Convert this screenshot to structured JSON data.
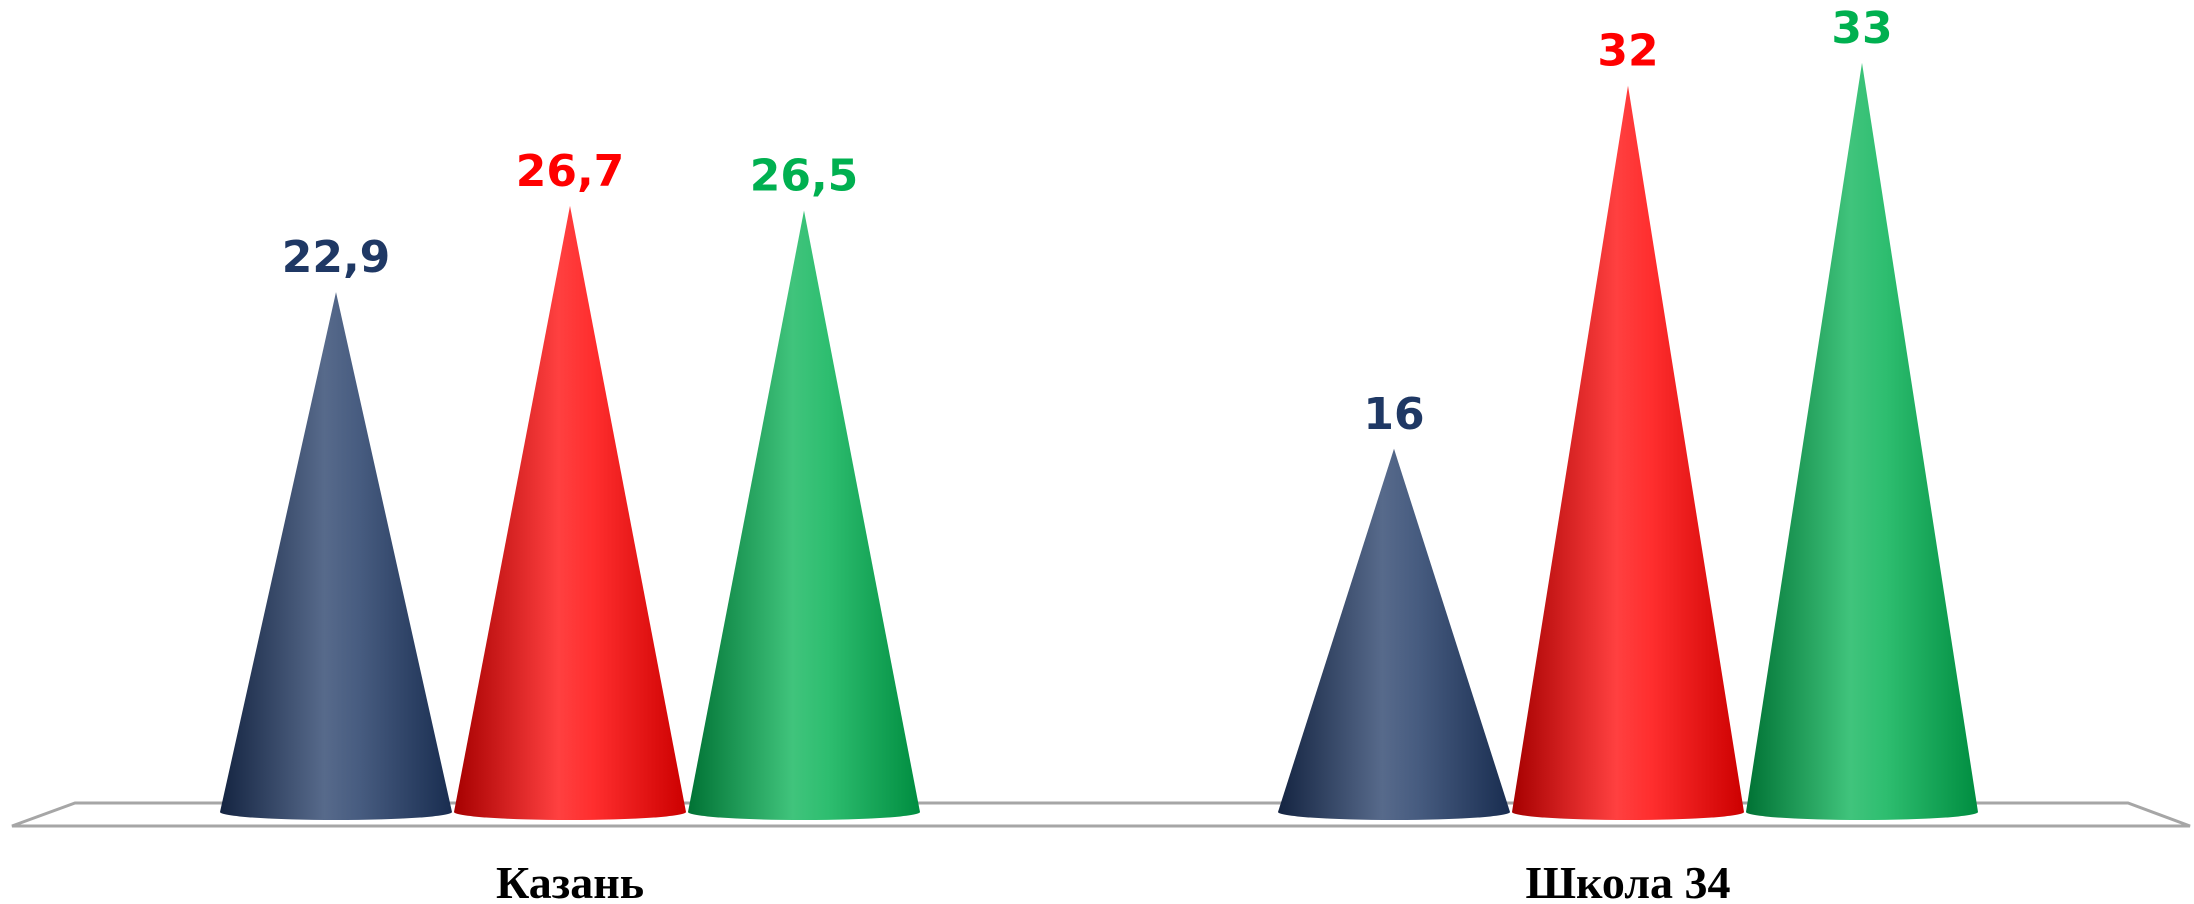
{
  "chart_data": {
    "type": "bar",
    "shape": "cone",
    "style": "3d",
    "categories": [
      "Казань",
      "Школа 34"
    ],
    "series": [
      {
        "values": [
          22.9,
          16
        ],
        "value_labels": [
          "22,9",
          "16"
        ],
        "color": "#1f3864",
        "label_color": "#1f3864"
      },
      {
        "values": [
          26.7,
          32
        ],
        "value_labels": [
          "26,7",
          "32"
        ],
        "color": "#ff0000",
        "label_color": "#ff0000"
      },
      {
        "values": [
          26.5,
          33
        ],
        "value_labels": [
          "26,5",
          "33"
        ],
        "color": "#00b050",
        "label_color": "#00b050"
      }
    ],
    "ylim": [
      0,
      35
    ],
    "grid": false,
    "legend": "none"
  }
}
